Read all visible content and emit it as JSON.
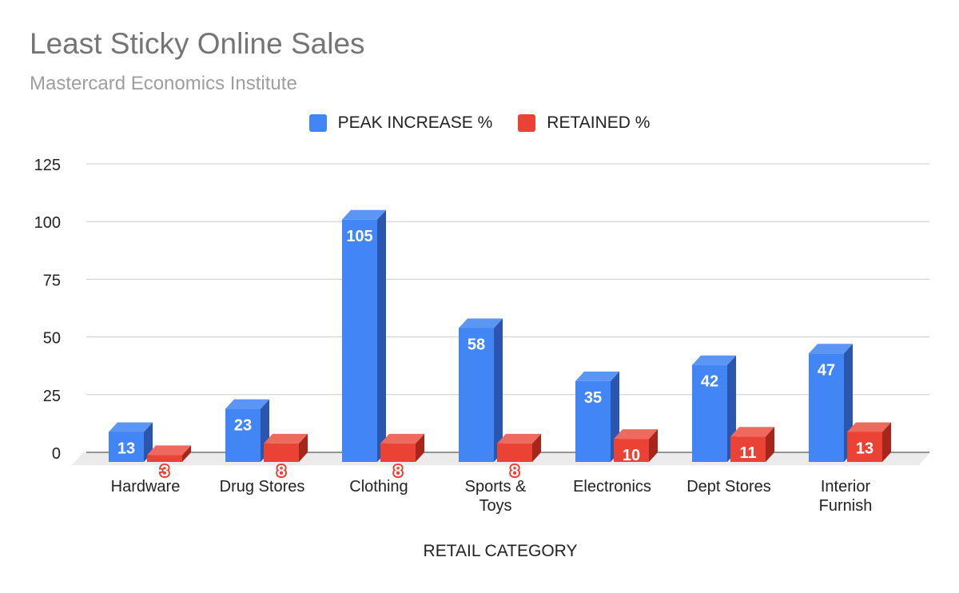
{
  "chart_data": {
    "type": "bar",
    "title": "Least Sticky Online Sales",
    "subtitle": "Mastercard Economics Institute",
    "xlabel": "RETAIL CATEGORY",
    "ylabel": "",
    "categories": [
      [
        "Hardware"
      ],
      [
        "Drug Stores"
      ],
      [
        "Clothing"
      ],
      [
        "Sports &",
        "Toys"
      ],
      [
        "Electronics"
      ],
      [
        "Dept Stores"
      ],
      [
        "Interior",
        "Furnish"
      ]
    ],
    "series": [
      {
        "name": "PEAK INCREASE %",
        "values": [
          13,
          23,
          105,
          58,
          35,
          42,
          47
        ],
        "color": "#4285f4",
        "side_color": "#2a56b0",
        "top_color": "#5c96f5"
      },
      {
        "name": "RETAINED %",
        "values": [
          3,
          8,
          8,
          8,
          10,
          11,
          13
        ],
        "color": "#ea4335",
        "side_color": "#a82519",
        "top_color": "#ee6a5e"
      }
    ],
    "ylim": [
      0,
      125
    ],
    "yticks": [
      0,
      25,
      50,
      75,
      100,
      125
    ],
    "grid": true,
    "legend_position": "top",
    "three_d": true
  }
}
